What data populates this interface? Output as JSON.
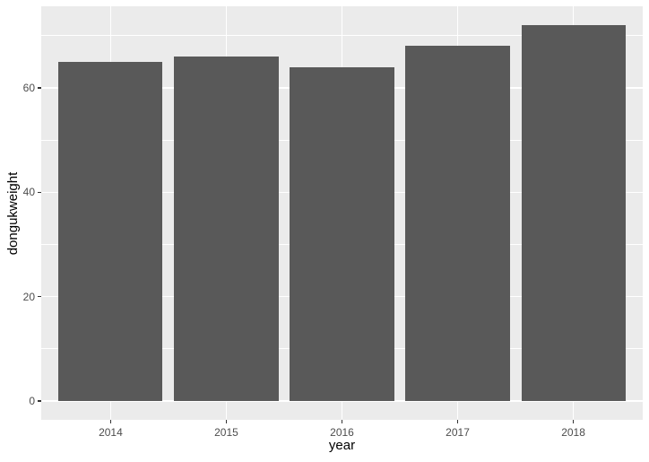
{
  "chart_data": {
    "type": "bar",
    "title": "",
    "categories": [
      "2014",
      "2015",
      "2016",
      "2017",
      "2018"
    ],
    "values": [
      65,
      66,
      64,
      68,
      72
    ],
    "xlabel": "year",
    "ylabel": "dongukweight",
    "y_major_ticks": [
      0,
      20,
      40,
      60
    ],
    "y_major_tick_labels": [
      "0",
      "20",
      "40",
      "60"
    ],
    "y_minor_ticks": [
      10,
      30,
      50,
      70
    ],
    "data_ylim": [
      0,
      72
    ],
    "y_axis_range": [
      -3.61,
      75.64
    ],
    "grid": true,
    "legend": "none",
    "style": {
      "figure_bg": "#FFFFFF",
      "panel_bg": "#EBEBEB",
      "bar_fill": "#595959",
      "grid_color": "#FFFFFF",
      "tick_mark_color": "#333333",
      "tick_label_color": "#4D4D4D",
      "axis_title_color": "#000000"
    }
  }
}
